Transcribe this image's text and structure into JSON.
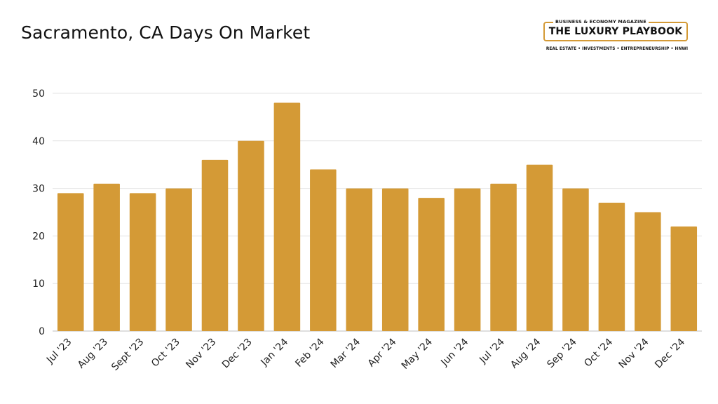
{
  "header": {
    "title": "Sacramento, CA Days On Market"
  },
  "logo": {
    "kicker": "BUSINESS & ECONOMY MAGAZINE",
    "name": "THE LUXURY PLAYBOOK",
    "tagline": "REAL ESTATE • INVESTMENTS • ENTREPRENEURSHIP • HNWI",
    "accent_color": "#d49a36"
  },
  "chart_data": {
    "type": "bar",
    "title": "Sacramento, CA Days On Market",
    "xlabel": "",
    "ylabel": "",
    "categories": [
      "Jul '23",
      "Aug '23",
      "Sept '23",
      "Oct '23",
      "Nov '23",
      "Dec '23",
      "Jan '24",
      "Feb '24",
      "Mar '24",
      "Apr '24",
      "May '24",
      "Jun '24",
      "Jul '24",
      "Aug '24",
      "Sep '24",
      "Oct '24",
      "Nov '24",
      "Dec '24"
    ],
    "values": [
      29,
      31,
      29,
      30,
      36,
      40,
      48,
      34,
      30,
      30,
      28,
      30,
      31,
      35,
      30,
      27,
      25,
      22
    ],
    "ylim": [
      0,
      50
    ],
    "yticks": [
      0,
      10,
      20,
      30,
      40,
      50
    ],
    "grid": true,
    "bar_color": "#d49a36",
    "grid_color": "#e3e3e3"
  }
}
